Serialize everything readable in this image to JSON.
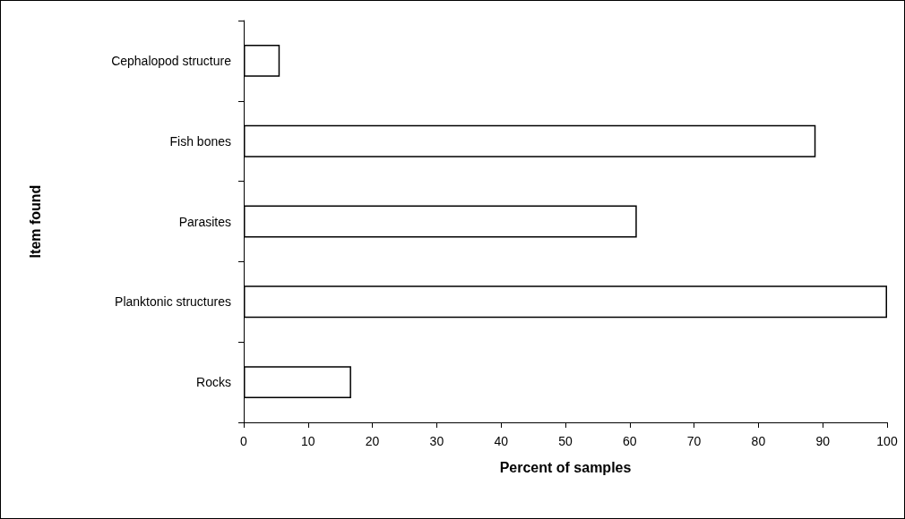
{
  "chart_data": {
    "type": "bar",
    "orientation": "horizontal",
    "xlabel": "Percent of samples",
    "ylabel": "Item found",
    "categories": [
      "Cephalopod structure",
      "Fish bones",
      "Parasites",
      "Planktonic structures",
      "Rocks"
    ],
    "values": [
      5.6,
      88.9,
      61.1,
      100,
      16.7
    ],
    "color": "#ffffff",
    "xlim": [
      0,
      100
    ],
    "xticks": [
      0,
      10,
      20,
      30,
      40,
      50,
      60,
      70,
      80,
      90,
      100
    ],
    "grid": false
  }
}
